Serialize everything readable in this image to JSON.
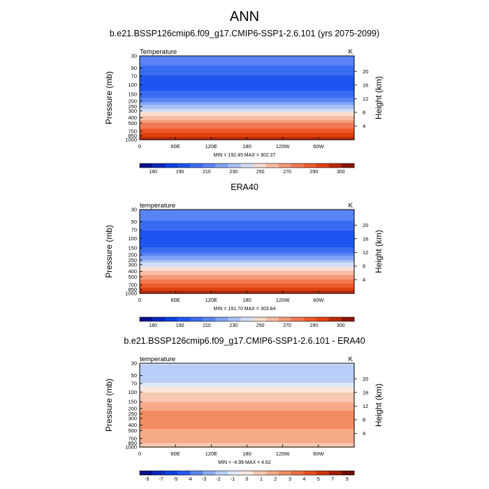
{
  "figure": {
    "title": "ANN"
  },
  "colors": {
    "temperature_palette": [
      "#08108c",
      "#0a28be",
      "#0c40e0",
      "#1e55f0",
      "#3a6cf2",
      "#5a84f4",
      "#7ea2f6",
      "#a8c2f8",
      "#d2dff8",
      "#f8ddd0",
      "#f8bca2",
      "#f59a78",
      "#f27852",
      "#ee5a2c",
      "#e04010",
      "#b82a08",
      "#8c1400"
    ],
    "difference_palette": [
      "#08108c",
      "#0a28be",
      "#0c40e0",
      "#2858f0",
      "#5a84f4",
      "#8aacf6",
      "#b8cef8",
      "#e0e8fa",
      "#fae6dc",
      "#f8c8b0",
      "#f6aa88",
      "#f38c62",
      "#ef6e3e",
      "#e85020",
      "#cc3410",
      "#a01c04",
      "#700800"
    ]
  },
  "chart_data": [
    {
      "type": "heatmap",
      "title": "b.e21.BSSP126cmip6.f09_g17.CMIP6-SSP1-2.6.101 (yrs 2075-2099)",
      "variable_label": "Temperature",
      "units": "K",
      "xlabel": "",
      "ylabel": "Pressure (mb)",
      "ylabel_right": "Height (km)",
      "x_ticks": [
        "0",
        "60E",
        "120E",
        "180",
        "120W",
        "60W"
      ],
      "y_ticks": [
        "30",
        "50",
        "70",
        "100",
        "150",
        "200",
        "250",
        "300",
        "400",
        "500",
        "700",
        "850",
        "1000"
      ],
      "y_ticks_right": [
        "20",
        "16",
        "12",
        "8",
        "4"
      ],
      "ylim": [
        1000,
        30
      ],
      "yscale": "log",
      "min_max_text": "MIN = 192.45  MAX = 302.37",
      "colorbar_ticks": [
        "180",
        "190",
        "210",
        "230",
        "250",
        "270",
        "290",
        "300"
      ],
      "profile": [
        {
          "p": 30,
          "v": 219
        },
        {
          "p": 50,
          "v": 212
        },
        {
          "p": 70,
          "v": 205
        },
        {
          "p": 100,
          "v": 200
        },
        {
          "p": 150,
          "v": 208
        },
        {
          "p": 200,
          "v": 220
        },
        {
          "p": 250,
          "v": 232
        },
        {
          "p": 300,
          "v": 242
        },
        {
          "p": 400,
          "v": 256
        },
        {
          "p": 500,
          "v": 266
        },
        {
          "p": 700,
          "v": 280
        },
        {
          "p": 850,
          "v": 288
        },
        {
          "p": 1000,
          "v": 296
        }
      ]
    },
    {
      "type": "heatmap",
      "title": "ERA40",
      "variable_label": "temperature",
      "units": "K",
      "xlabel": "",
      "ylabel": "Pressure (mb)",
      "ylabel_right": "Height (km)",
      "x_ticks": [
        "0",
        "60E",
        "120E",
        "180",
        "120W",
        "60W"
      ],
      "y_ticks": [
        "30",
        "50",
        "70",
        "100",
        "150",
        "200",
        "250",
        "300",
        "400",
        "500",
        "700",
        "850",
        "1000"
      ],
      "y_ticks_right": [
        "20",
        "16",
        "12",
        "8",
        "4"
      ],
      "ylim": [
        1000,
        30
      ],
      "yscale": "log",
      "min_max_text": "MIN = 191.70  MAX = 303.84",
      "colorbar_ticks": [
        "180",
        "190",
        "210",
        "230",
        "250",
        "270",
        "290",
        "300"
      ],
      "profile": [
        {
          "p": 30,
          "v": 220
        },
        {
          "p": 50,
          "v": 213
        },
        {
          "p": 70,
          "v": 206
        },
        {
          "p": 100,
          "v": 199
        },
        {
          "p": 150,
          "v": 206
        },
        {
          "p": 200,
          "v": 218
        },
        {
          "p": 250,
          "v": 230
        },
        {
          "p": 300,
          "v": 240
        },
        {
          "p": 400,
          "v": 253
        },
        {
          "p": 500,
          "v": 263
        },
        {
          "p": 700,
          "v": 278
        },
        {
          "p": 850,
          "v": 286
        },
        {
          "p": 1000,
          "v": 295
        }
      ]
    },
    {
      "type": "heatmap",
      "title": "b.e21.BSSP126cmip6.f09_g17.CMIP6-SSP1-2.6.101 - ERA40",
      "variable_label": "temperature",
      "units": "K",
      "xlabel": "",
      "ylabel": "Pressure (mb)",
      "ylabel_right": "Height (km)",
      "x_ticks": [
        "0",
        "60E",
        "120E",
        "180",
        "120W",
        "60W"
      ],
      "y_ticks": [
        "30",
        "50",
        "70",
        "100",
        "150",
        "200",
        "250",
        "300",
        "400",
        "500",
        "700",
        "850",
        "1000"
      ],
      "y_ticks_right": [
        "20",
        "16",
        "12",
        "8",
        "4"
      ],
      "ylim": [
        1000,
        30
      ],
      "yscale": "log",
      "min_max_text": "MIN =  -4.99  MAX =   4.62",
      "colorbar_ticks": [
        "-9",
        "-7",
        "-5",
        "-4",
        "-3",
        "-2",
        "-1",
        "0",
        "1",
        "2",
        "3",
        "4",
        "5",
        "7",
        "9"
      ],
      "profile": [
        {
          "p": 30,
          "v": -1.5
        },
        {
          "p": 50,
          "v": -2.5
        },
        {
          "p": 70,
          "v": -1.5
        },
        {
          "p": 100,
          "v": 0.5
        },
        {
          "p": 150,
          "v": 1.5
        },
        {
          "p": 200,
          "v": 2.5
        },
        {
          "p": 250,
          "v": 3
        },
        {
          "p": 300,
          "v": 3.5
        },
        {
          "p": 400,
          "v": 3
        },
        {
          "p": 500,
          "v": 2.5
        },
        {
          "p": 700,
          "v": 2
        },
        {
          "p": 850,
          "v": 1.5
        },
        {
          "p": 1000,
          "v": 1
        }
      ]
    }
  ]
}
